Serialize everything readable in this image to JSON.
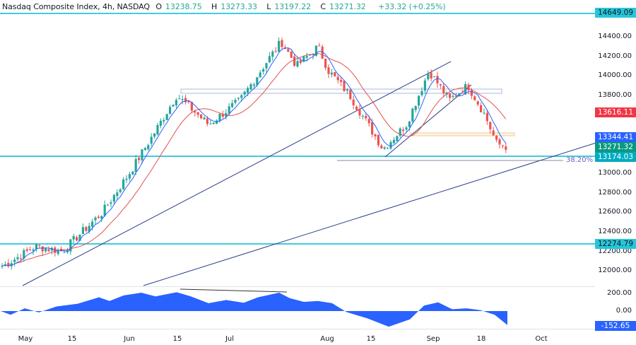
{
  "header": {
    "title": "Nasdaq Composite Index, 4h, NASDAQ",
    "open_label": "O",
    "open": "13238.75",
    "high_label": "H",
    "high": "13273.33",
    "low_label": "L",
    "low": "13197.22",
    "close_label": "C",
    "close": "13271.32",
    "change": "+33.32 (+0.25%)"
  },
  "colors": {
    "up": "#26a69a",
    "down": "#ef5350",
    "ma_fast": "#2962ff",
    "ma_slow": "#e05050",
    "level_line": "#00bcd4",
    "trend_line": "#2a3f8c",
    "oscillator": "#2962ff"
  },
  "price_axis": {
    "ticks": [
      "14400.00",
      "14200.00",
      "14000.00",
      "13800.00",
      "13000.00",
      "12800.00",
      "12600.00",
      "12400.00",
      "12200.00",
      "12000.00"
    ],
    "labels": {
      "resistance": "14649.09",
      "ma_slow": "13616.11",
      "ma_fast": "13344.41",
      "last_price": "13271.32",
      "support": "13174.03",
      "lower_support": "12274.79"
    }
  },
  "fib_label": "38.20%",
  "oscillator_axis": {
    "ticks": [
      "200.00",
      "0.00"
    ],
    "value": "-152.65"
  },
  "time_axis": {
    "ticks": [
      "May",
      "15",
      "Jun",
      "15",
      "Jul",
      "Aug",
      "15",
      "Sep",
      "18",
      "Oct"
    ]
  },
  "chart_data": {
    "type": "candlestick",
    "title": "Nasdaq Composite Index, 4h, NASDAQ",
    "xlabel": "",
    "ylabel": "Price",
    "ylim": [
      11900,
      14700
    ],
    "x_ticks": [
      "May",
      "15",
      "Jun",
      "15",
      "Jul",
      "Aug",
      "15",
      "Sep",
      "18",
      "Oct"
    ],
    "last": {
      "open": 13238.75,
      "high": 13273.33,
      "low": 13197.22,
      "close": 13271.32,
      "change": 33.32,
      "change_pct": 0.25
    },
    "horizontal_levels": [
      14649.09,
      13174.03,
      12274.79
    ],
    "fib_level": {
      "label": "38.20%",
      "price": 13130
    },
    "moving_averages": [
      {
        "name": "fast MA",
        "last": 13344.41
      },
      {
        "name": "slow MA",
        "last": 13616.11
      }
    ],
    "approx_close_path": [
      {
        "x": "May 1",
        "close": 12050
      },
      {
        "x": "May 10",
        "close": 12250
      },
      {
        "x": "May 15",
        "close": 12200
      },
      {
        "x": "May 25",
        "close": 12600
      },
      {
        "x": "Jun 1",
        "close": 13000
      },
      {
        "x": "Jun 9",
        "close": 13350
      },
      {
        "x": "Jun 15",
        "close": 13800
      },
      {
        "x": "Jun 22",
        "close": 13500
      },
      {
        "x": "Jul 3",
        "close": 13750
      },
      {
        "x": "Jul 13",
        "close": 14150
      },
      {
        "x": "Jul 19",
        "close": 14350
      },
      {
        "x": "Jul 25",
        "close": 14100
      },
      {
        "x": "Jul 31",
        "close": 14300
      },
      {
        "x": "Aug 3",
        "close": 14050
      },
      {
        "x": "Aug 9",
        "close": 13800
      },
      {
        "x": "Aug 18",
        "close": 13250
      },
      {
        "x": "Aug 24",
        "close": 13500
      },
      {
        "x": "Aug 31",
        "close": 14050
      },
      {
        "x": "Sep 7",
        "close": 13750
      },
      {
        "x": "Sep 14",
        "close": 13900
      },
      {
        "x": "Sep 19",
        "close": 13600
      },
      {
        "x": "Sep 21",
        "close": 13300
      },
      {
        "x": "Sep 22",
        "close": 13271.32
      }
    ],
    "oscillator": {
      "ylim": [
        -250,
        250
      ],
      "ticks": [
        200,
        0
      ],
      "last": -152.65
    }
  }
}
